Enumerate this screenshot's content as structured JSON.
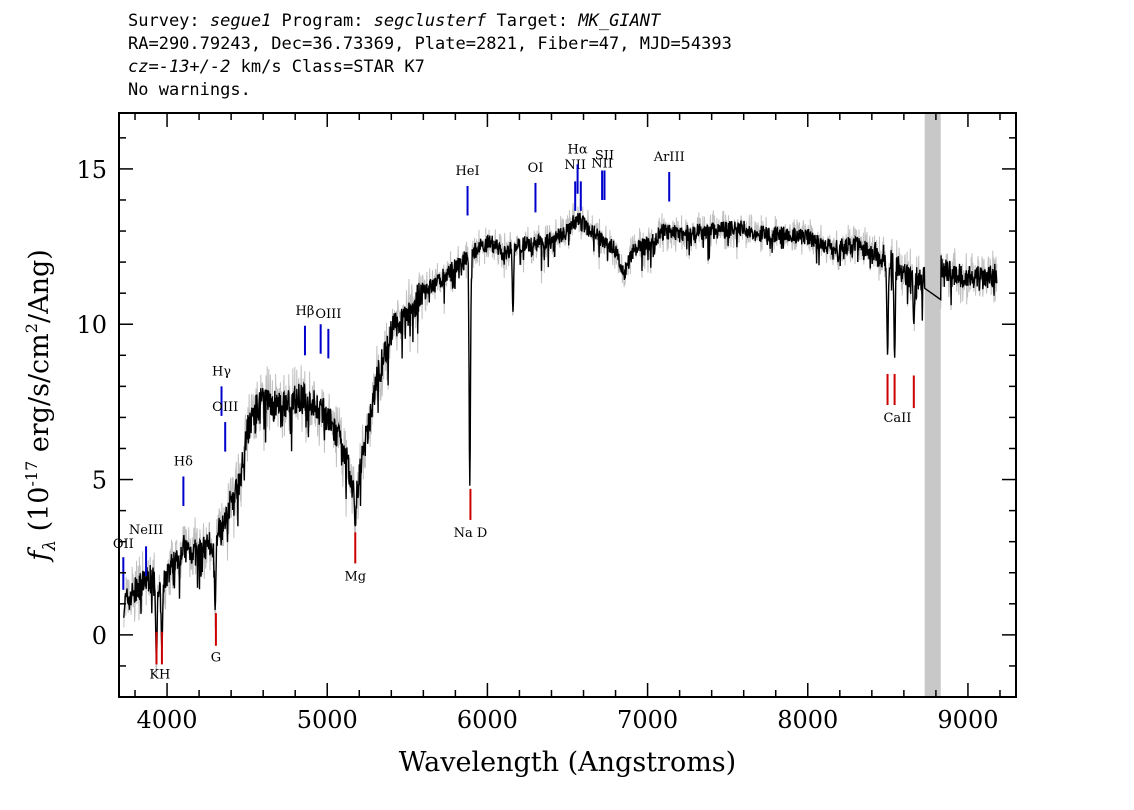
{
  "header": {
    "survey_label": "Survey: ",
    "survey": "segue1",
    "program_label": " Program: ",
    "program": "segclusterf",
    "target_label": " Target: ",
    "target": "MK_GIANT",
    "line2": "RA=290.79243, Dec=36.73369, Plate=2821, Fiber=47, MJD=54393",
    "cz_label": "cz=",
    "cz": "-13+/-2",
    "cz_rest": " km/s Class=STAR K7",
    "line4": "No warnings."
  },
  "chart_data": {
    "type": "line",
    "xlabel": "Wavelength (Angstroms)",
    "ylabel_prefix": "f",
    "ylabel_sub": "λ",
    "ylabel_rest": " (10",
    "ylabel_exp": "-17",
    "ylabel_units": " erg/s/cm",
    "ylabel_exp2": "2",
    "ylabel_end": "/Ang)",
    "xlim": [
      3700,
      9300
    ],
    "ylim": [
      -2,
      16.8
    ],
    "xticks": [
      4000,
      5000,
      6000,
      7000,
      8000,
      9000
    ],
    "xtick_labels": [
      "4000",
      "5000",
      "6000",
      "7000",
      "8000",
      "9000"
    ],
    "yticks": [
      0,
      5,
      10,
      15
    ],
    "ytick_labels": [
      "0",
      "5",
      "10",
      "15"
    ],
    "masked_region": [
      8730,
      8830
    ],
    "colors": {
      "flux": "#000000",
      "error": "#c0c0c0",
      "emission": "#0000cc",
      "absorption": "#cc0000",
      "mask": "#c8c8c8"
    },
    "continuum": [
      [
        3730,
        1.0
      ],
      [
        3800,
        1.4
      ],
      [
        3900,
        1.9
      ],
      [
        3950,
        1.2
      ],
      [
        4000,
        2.0
      ],
      [
        4100,
        2.8
      ],
      [
        4200,
        2.6
      ],
      [
        4300,
        3.0
      ],
      [
        4350,
        3.7
      ],
      [
        4400,
        4.3
      ],
      [
        4450,
        4.9
      ],
      [
        4500,
        6.6
      ],
      [
        4550,
        7.2
      ],
      [
        4600,
        7.6
      ],
      [
        4700,
        7.3
      ],
      [
        4800,
        7.6
      ],
      [
        4850,
        7.6
      ],
      [
        4900,
        7.5
      ],
      [
        5000,
        7.0
      ],
      [
        5100,
        6.0
      ],
      [
        5150,
        5.0
      ],
      [
        5175,
        4.2
      ],
      [
        5200,
        5.2
      ],
      [
        5250,
        6.5
      ],
      [
        5300,
        8.0
      ],
      [
        5400,
        9.8
      ],
      [
        5500,
        10.4
      ],
      [
        5600,
        11.0
      ],
      [
        5700,
        11.4
      ],
      [
        5800,
        11.9
      ],
      [
        5890,
        12.2
      ],
      [
        6000,
        12.7
      ],
      [
        6100,
        12.3
      ],
      [
        6200,
        12.6
      ],
      [
        6300,
        12.6
      ],
      [
        6400,
        12.7
      ],
      [
        6500,
        13.0
      ],
      [
        6560,
        13.4
      ],
      [
        6600,
        13.2
      ],
      [
        6700,
        12.8
      ],
      [
        6800,
        12.4
      ],
      [
        6850,
        11.6
      ],
      [
        6900,
        12.3
      ],
      [
        7000,
        12.6
      ],
      [
        7100,
        13.0
      ],
      [
        7200,
        12.9
      ],
      [
        7400,
        13.0
      ],
      [
        7600,
        13.1
      ],
      [
        7700,
        12.9
      ],
      [
        7800,
        12.9
      ],
      [
        8000,
        12.8
      ],
      [
        8100,
        12.5
      ],
      [
        8200,
        12.5
      ],
      [
        8300,
        12.6
      ],
      [
        8400,
        12.3
      ],
      [
        8500,
        12.1
      ],
      [
        8600,
        11.7
      ],
      [
        8700,
        11.4
      ],
      [
        8850,
        11.9
      ],
      [
        8900,
        11.6
      ],
      [
        9000,
        11.5
      ],
      [
        9100,
        11.5
      ],
      [
        9180,
        11.6
      ]
    ],
    "absorption_features": [
      [
        3934,
        -0.8
      ],
      [
        3968,
        -0.5
      ],
      [
        4300,
        0.8
      ],
      [
        5175,
        3.5
      ],
      [
        5890,
        4.8
      ],
      [
        6160,
        10.4
      ],
      [
        8498,
        9.0
      ],
      [
        8542,
        8.9
      ],
      [
        8662,
        10.0
      ],
      [
        8190,
        12.0
      ]
    ],
    "emission_lines": [
      {
        "label": "OII",
        "x": 3727,
        "y_low": 1.45,
        "y_high": 2.5,
        "label_y": 2.8
      },
      {
        "label": "NeIII",
        "x": 3869,
        "y_low": 1.9,
        "y_high": 2.85,
        "label_y": 3.25
      },
      {
        "label": "Hδ",
        "x": 4102,
        "y_low": 4.15,
        "y_high": 5.1,
        "label_y": 5.45
      },
      {
        "label": "Hγ",
        "x": 4340,
        "y_low": 7.05,
        "y_high": 8.0,
        "label_y": 8.35
      },
      {
        "label": "OIII",
        "x": 4363,
        "y_low": 5.9,
        "y_high": 6.85,
        "label_y": 7.2
      },
      {
        "label": "Hβ",
        "x": 4861,
        "y_low": 9.0,
        "y_high": 9.95,
        "label_y": 10.3
      },
      {
        "label": "OIII",
        "x": 4959,
        "y_low": 9.05,
        "y_high": 10.0,
        "label_y": null
      },
      {
        "label": "OIII",
        "x": 5007,
        "y_low": 8.9,
        "y_high": 9.85,
        "label_y": 10.2
      },
      {
        "label": "HeI",
        "x": 5876,
        "y_low": 13.5,
        "y_high": 14.45,
        "label_y": 14.8
      },
      {
        "label": "OI",
        "x": 6300,
        "y_low": 13.6,
        "y_high": 14.55,
        "label_y": 14.9
      },
      {
        "label": "NII",
        "x": 6548,
        "y_low": 13.65,
        "y_high": 14.6,
        "label_y": 15.0
      },
      {
        "label": "Hα",
        "x": 6563,
        "y_low": 14.2,
        "y_high": 15.15,
        "label_y": 15.5
      },
      {
        "label": "NII",
        "x": 6583,
        "y_low": 13.65,
        "y_high": 14.6,
        "label_y": null
      },
      {
        "label": "NII",
        "x": 6716,
        "y_low": 14.0,
        "y_high": 14.95,
        "label_y": 15.05
      },
      {
        "label": "SII",
        "x": 6731,
        "y_low": 14.0,
        "y_high": 14.95,
        "label_y": 15.3
      },
      {
        "label": "ArIII",
        "x": 7135,
        "y_low": 13.95,
        "y_high": 14.9,
        "label_y": 15.25
      }
    ],
    "absorption_lines": [
      {
        "label": "K",
        "x": 3934,
        "y_low": -0.95,
        "y_high": 0.1,
        "label_y": -1.4
      },
      {
        "label": "H",
        "x": 3968,
        "y_low": -0.95,
        "y_high": 0.1,
        "label_y": -1.4
      },
      {
        "label": "G",
        "x": 4305,
        "y_low": -0.35,
        "y_high": 0.7,
        "label_y": -0.85
      },
      {
        "label": "Mg",
        "x": 5175,
        "y_low": 2.3,
        "y_high": 3.3,
        "label_y": 1.75
      },
      {
        "label": "Na",
        "x": 5894,
        "y_low": 3.7,
        "y_high": 4.7,
        "label_y": 3.15
      },
      {
        "label": "CaII",
        "x": 8498,
        "y_low": 7.4,
        "y_high": 8.4,
        "label_y": 6.85
      },
      {
        "label": "",
        "x": 8542,
        "y_low": 7.4,
        "y_high": 8.4,
        "label_y": null
      },
      {
        "label": "",
        "x": 8662,
        "y_low": 7.3,
        "y_high": 8.35,
        "label_y": null
      }
    ],
    "na_d_label": "Na  D",
    "kh_label": "KH"
  }
}
